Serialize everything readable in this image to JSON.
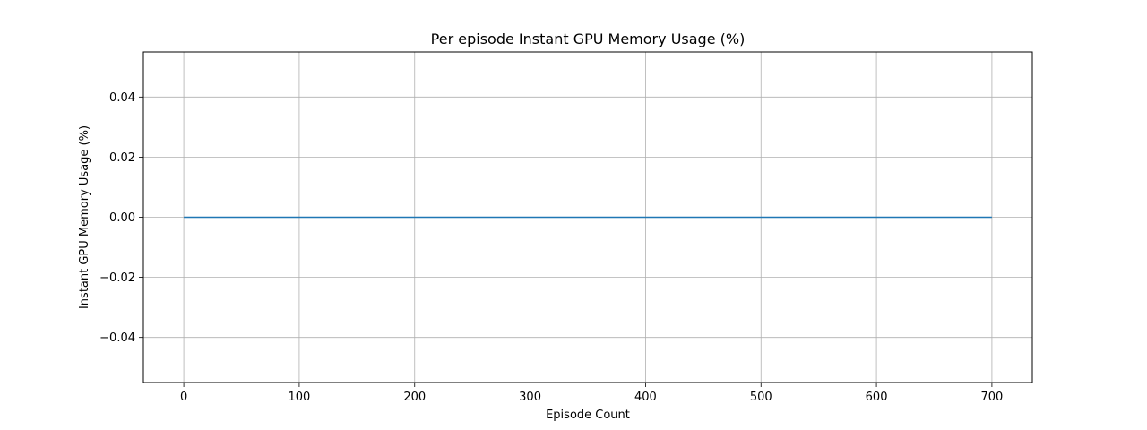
{
  "chart_data": {
    "type": "line",
    "title": "Per episode Instant GPU Memory Usage (%)",
    "xlabel": "Episode Count",
    "ylabel": "Instant GPU Memory Usage (%)",
    "xlim": [
      -35,
      735
    ],
    "ylim": [
      -0.055,
      0.055
    ],
    "xticks": [
      0,
      100,
      200,
      300,
      400,
      500,
      600,
      700
    ],
    "yticks": [
      -0.04,
      -0.02,
      0.0,
      0.02,
      0.04
    ],
    "xtick_labels": [
      "0",
      "100",
      "200",
      "300",
      "400",
      "500",
      "600",
      "700"
    ],
    "ytick_labels": [
      "−0.04",
      "−0.02",
      "0.00",
      "0.02",
      "0.04"
    ],
    "grid": true,
    "series": [
      {
        "color": "#1f77b4",
        "x": [
          0,
          700
        ],
        "y": [
          0,
          0
        ]
      }
    ]
  }
}
